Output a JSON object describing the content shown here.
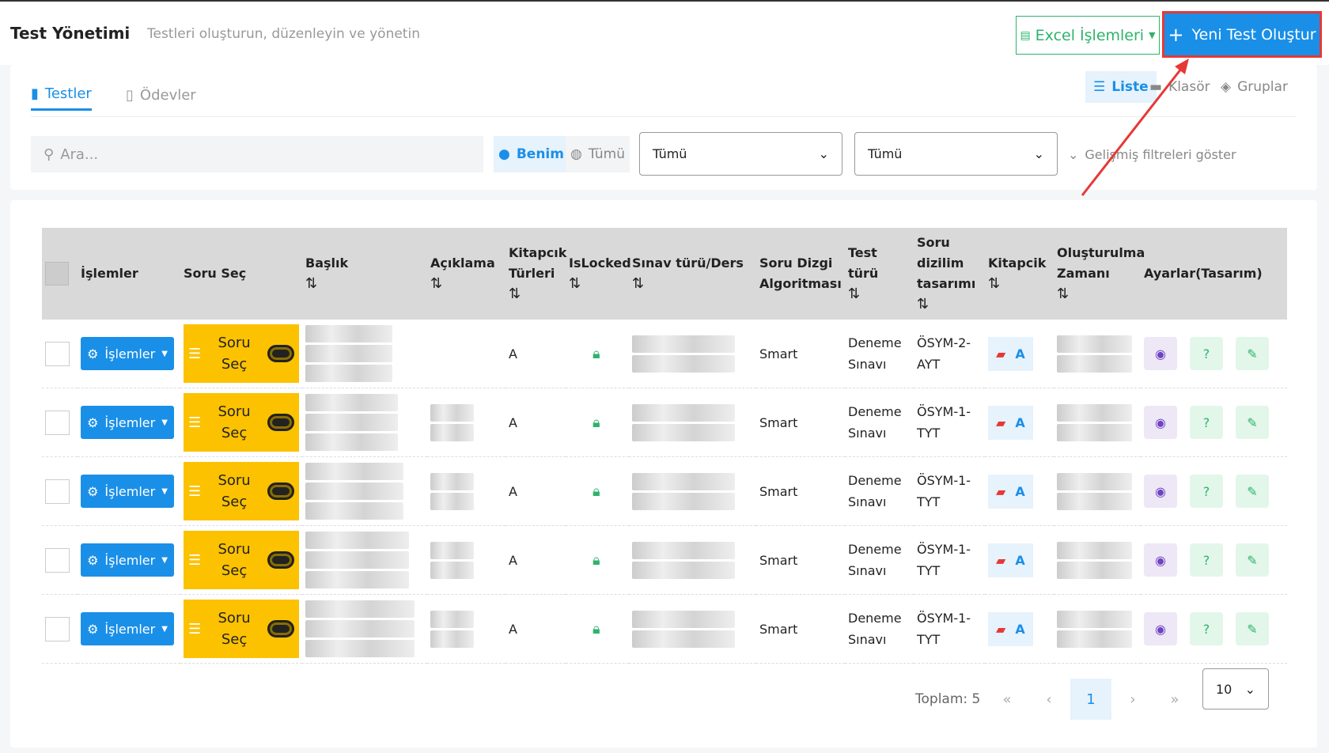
{
  "header": {
    "title": "Test Yönetimi",
    "subtitle": "Testleri oluşturun, düzenleyin ve yönetin",
    "excel_button": "Excel İşlemleri",
    "new_button": "Yeni Test Oluştur"
  },
  "tabs": [
    "Testler",
    "Ödevler"
  ],
  "view_modes": [
    "Liste",
    "Klasör",
    "Gruplar"
  ],
  "filters": {
    "search_placeholder": "Ara...",
    "owner": [
      "Benim",
      "Tümü"
    ],
    "select1": "Tümü",
    "select2": "Tümü",
    "advanced": "Gelişmiş filtreleri göster"
  },
  "table": {
    "columns": [
      "İşlemler",
      "Soru Seç",
      "Başlık",
      "Açıklama",
      "Kitapcık Türleri",
      "IsLocked",
      "Sınav türü/Ders",
      "Soru Dizgi Algoritması",
      "Test türü",
      "Soru dizilim tasarımı",
      "Kitapcik",
      "Oluşturulma Zamanı",
      "Ayarlar(Tasarım)"
    ],
    "rows": [
      {
        "action": "İşlemler",
        "select": "Soru Seç",
        "booklet_types": "A",
        "algorithm": "Smart",
        "test_type": "Deneme Sınavı",
        "layout": "ÖSYM-2-AYT",
        "booklet": "A"
      },
      {
        "action": "İşlemler",
        "select": "Soru Seç",
        "booklet_types": "A",
        "algorithm": "Smart",
        "test_type": "Deneme Sınavı",
        "layout": "ÖSYM-1-TYT",
        "booklet": "A"
      },
      {
        "action": "İşlemler",
        "select": "Soru Seç",
        "booklet_types": "A",
        "algorithm": "Smart",
        "test_type": "Deneme Sınavı",
        "layout": "ÖSYM-1-TYT",
        "booklet": "A"
      },
      {
        "action": "İşlemler",
        "select": "Soru Seç",
        "booklet_types": "A",
        "algorithm": "Smart",
        "test_type": "Deneme Sınavı",
        "layout": "ÖSYM-1-TYT",
        "booklet": "A"
      },
      {
        "action": "İşlemler",
        "select": "Soru Seç",
        "booklet_types": "A",
        "algorithm": "Smart",
        "test_type": "Deneme Sınavı",
        "layout": "ÖSYM-1-TYT",
        "booklet": "A"
      }
    ]
  },
  "pagination": {
    "total": "Toplam: 5",
    "page": "1",
    "page_size": "10"
  }
}
